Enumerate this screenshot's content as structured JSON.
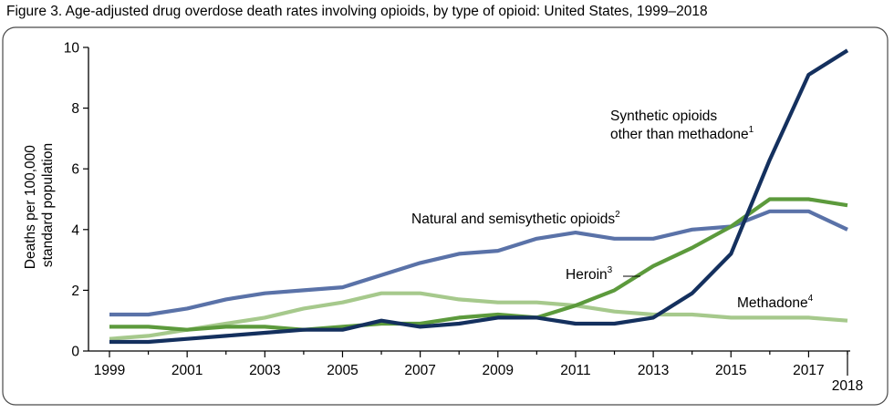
{
  "figure_title": "Figure 3. Age-adjusted drug overdose death rates involving opioids, by type of opioid: United States, 1999–2018",
  "chart_data": {
    "type": "line",
    "ylabel_line1": "Deaths per 100,000",
    "ylabel_line2": "standard population",
    "xlabel": "",
    "ylim": [
      0,
      10
    ],
    "yticks": [
      0,
      2,
      4,
      6,
      8,
      10
    ],
    "xlim": [
      1999,
      2018
    ],
    "xticks": [
      1999,
      2001,
      2003,
      2005,
      2007,
      2009,
      2011,
      2013,
      2015,
      2017
    ],
    "xtick_last": "2018",
    "grid": false,
    "legend": "none (direct labels)",
    "x": [
      1999,
      2000,
      2001,
      2002,
      2003,
      2004,
      2005,
      2006,
      2007,
      2008,
      2009,
      2010,
      2011,
      2012,
      2013,
      2014,
      2015,
      2016,
      2017,
      2018
    ],
    "series": [
      {
        "key": "natural",
        "color": "#5a72a8",
        "values": [
          1.2,
          1.2,
          1.4,
          1.7,
          1.9,
          2.0,
          2.1,
          2.5,
          2.9,
          3.2,
          3.3,
          3.7,
          3.9,
          3.7,
          3.7,
          4.0,
          4.1,
          4.6,
          4.6,
          4.0
        ]
      },
      {
        "key": "methadone",
        "color": "#a6c98c",
        "values": [
          0.4,
          0.5,
          0.7,
          0.9,
          1.1,
          1.4,
          1.6,
          1.9,
          1.9,
          1.7,
          1.6,
          1.6,
          1.5,
          1.3,
          1.2,
          1.2,
          1.1,
          1.1,
          1.1,
          1.0
        ]
      },
      {
        "key": "heroin",
        "color": "#5c9a3c",
        "values": [
          0.8,
          0.8,
          0.7,
          0.8,
          0.8,
          0.7,
          0.8,
          0.9,
          0.9,
          1.1,
          1.2,
          1.1,
          1.5,
          2.0,
          2.8,
          3.4,
          4.1,
          5.0,
          5.0,
          4.8
        ]
      },
      {
        "key": "synthetic",
        "color": "#14305e",
        "values": [
          0.3,
          0.3,
          0.4,
          0.5,
          0.6,
          0.7,
          0.7,
          1.0,
          0.8,
          0.9,
          1.1,
          1.1,
          0.9,
          0.9,
          1.1,
          1.9,
          3.2,
          6.3,
          9.1,
          9.9
        ]
      }
    ],
    "annotations": {
      "synthetic_line1": "Synthetic opioids",
      "synthetic_line2": "other than methadone",
      "synthetic_sup": "1",
      "natural": "Natural and semisythetic opioids",
      "natural_sup": "2",
      "heroin": "Heroin",
      "heroin_sup": "3",
      "methadone": "Methadone",
      "methadone_sup": "4"
    }
  }
}
